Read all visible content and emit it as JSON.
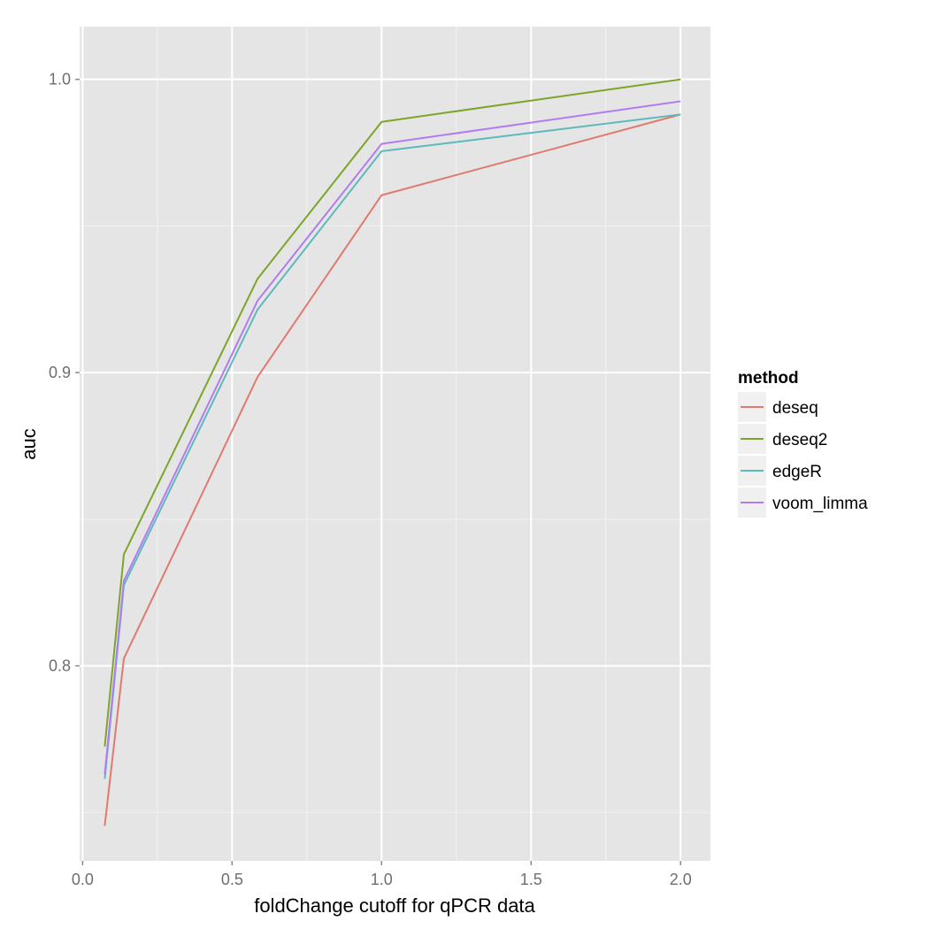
{
  "chart_data": {
    "type": "line",
    "xlabel": "foldChange cutoff for qPCR data",
    "ylabel": "auc",
    "xlim": [
      -0.01,
      2.1
    ],
    "ylim": [
      0.7335,
      1.018
    ],
    "x_ticks": [
      {
        "value": 0.0,
        "label": "0.0"
      },
      {
        "value": 0.5,
        "label": "0.5"
      },
      {
        "value": 1.0,
        "label": "1.0"
      },
      {
        "value": 1.5,
        "label": "1.5"
      },
      {
        "value": 2.0,
        "label": "2.0"
      }
    ],
    "y_ticks": [
      {
        "value": 0.8,
        "label": "0.8"
      },
      {
        "value": 0.9,
        "label": "0.9"
      },
      {
        "value": 1.0,
        "label": "1.0"
      }
    ],
    "grid": true,
    "background": "#e5e5e5",
    "legend": {
      "title": "method",
      "position": "right"
    },
    "x": [
      0.074,
      0.138,
      0.585,
      1.0,
      2.0
    ],
    "series": [
      {
        "name": "deseq",
        "color": "#e07a6f",
        "values": [
          0.7455,
          0.8025,
          0.8985,
          0.9605,
          0.988
        ]
      },
      {
        "name": "deseq2",
        "color": "#7ca529",
        "values": [
          0.7725,
          0.838,
          0.932,
          0.9855,
          1.0
        ]
      },
      {
        "name": "edgeR",
        "color": "#5eb9bd",
        "values": [
          0.7615,
          0.8275,
          0.9215,
          0.9755,
          0.988
        ]
      },
      {
        "name": "voom_limma",
        "color": "#b17cf0",
        "values": [
          0.763,
          0.829,
          0.9245,
          0.978,
          0.9925
        ]
      }
    ]
  }
}
